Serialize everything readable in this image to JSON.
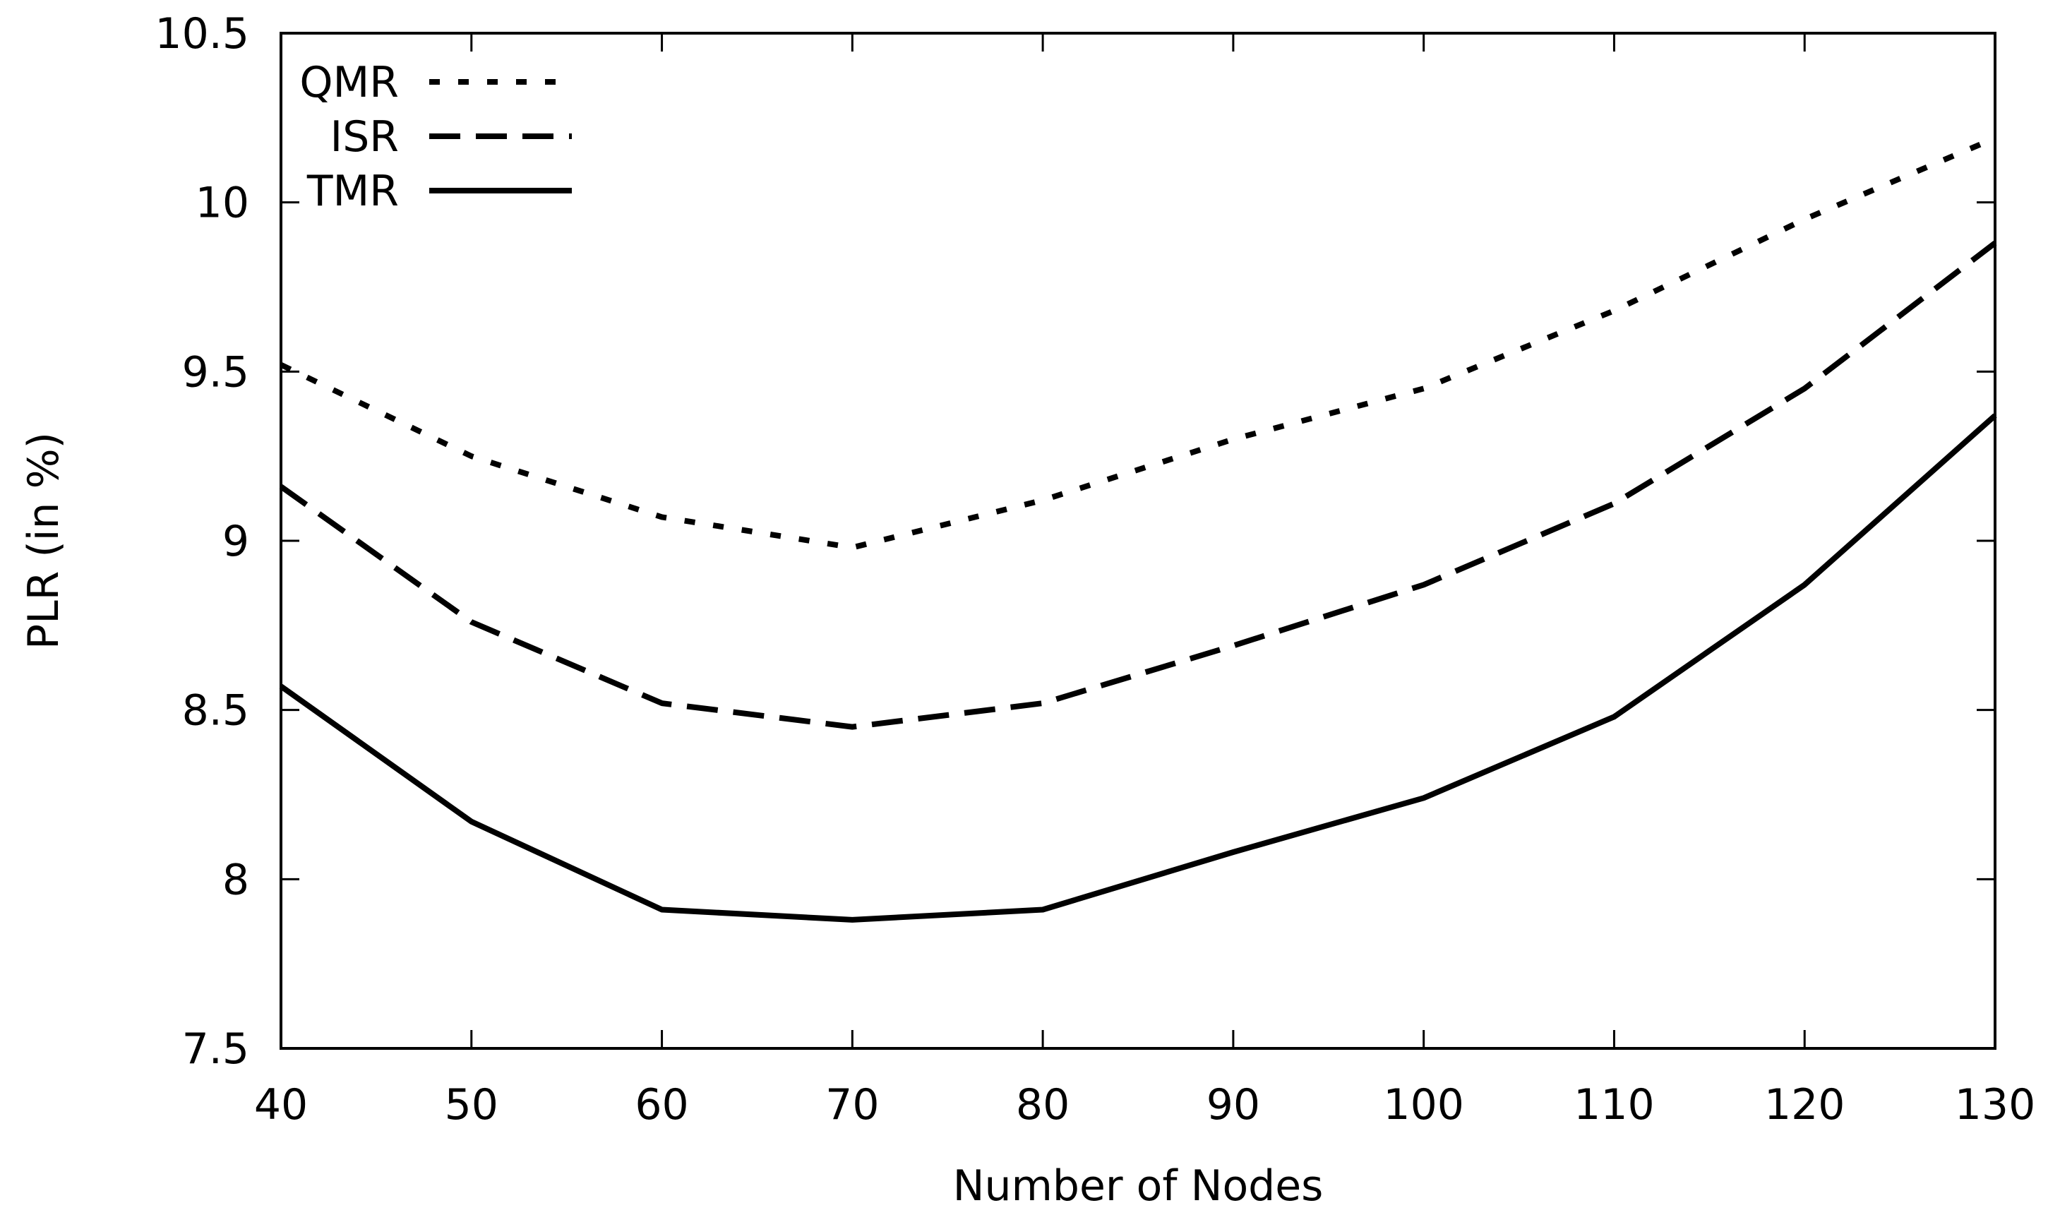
{
  "chart_data": {
    "type": "line",
    "title": "",
    "xlabel": "Number of Nodes",
    "ylabel": "PLR (in %)",
    "xlim": [
      40,
      130
    ],
    "ylim": [
      7.5,
      10.5
    ],
    "x_ticks": [
      "40",
      "50",
      "60",
      "70",
      "80",
      "90",
      "100",
      "110",
      "120",
      "130"
    ],
    "y_ticks": [
      "7.5",
      "8",
      "8.5",
      "9",
      "9.5",
      "10",
      "10.5"
    ],
    "grid": false,
    "legend_position": "top-left",
    "x": [
      40,
      50,
      60,
      70,
      80,
      90,
      100,
      110,
      120,
      130
    ],
    "series": [
      {
        "name": "QMR",
        "style": "dotted",
        "values": [
          9.52,
          9.25,
          9.07,
          8.98,
          9.12,
          9.3,
          9.45,
          9.68,
          9.95,
          10.19
        ]
      },
      {
        "name": "ISR",
        "style": "dashed",
        "values": [
          9.16,
          8.76,
          8.52,
          8.45,
          8.52,
          8.69,
          8.87,
          9.11,
          9.45,
          9.88
        ]
      },
      {
        "name": "TMR",
        "style": "solid",
        "values": [
          8.57,
          8.17,
          7.91,
          7.88,
          7.91,
          8.08,
          8.24,
          8.48,
          8.87,
          9.37
        ]
      }
    ],
    "line_color": "#000000"
  }
}
